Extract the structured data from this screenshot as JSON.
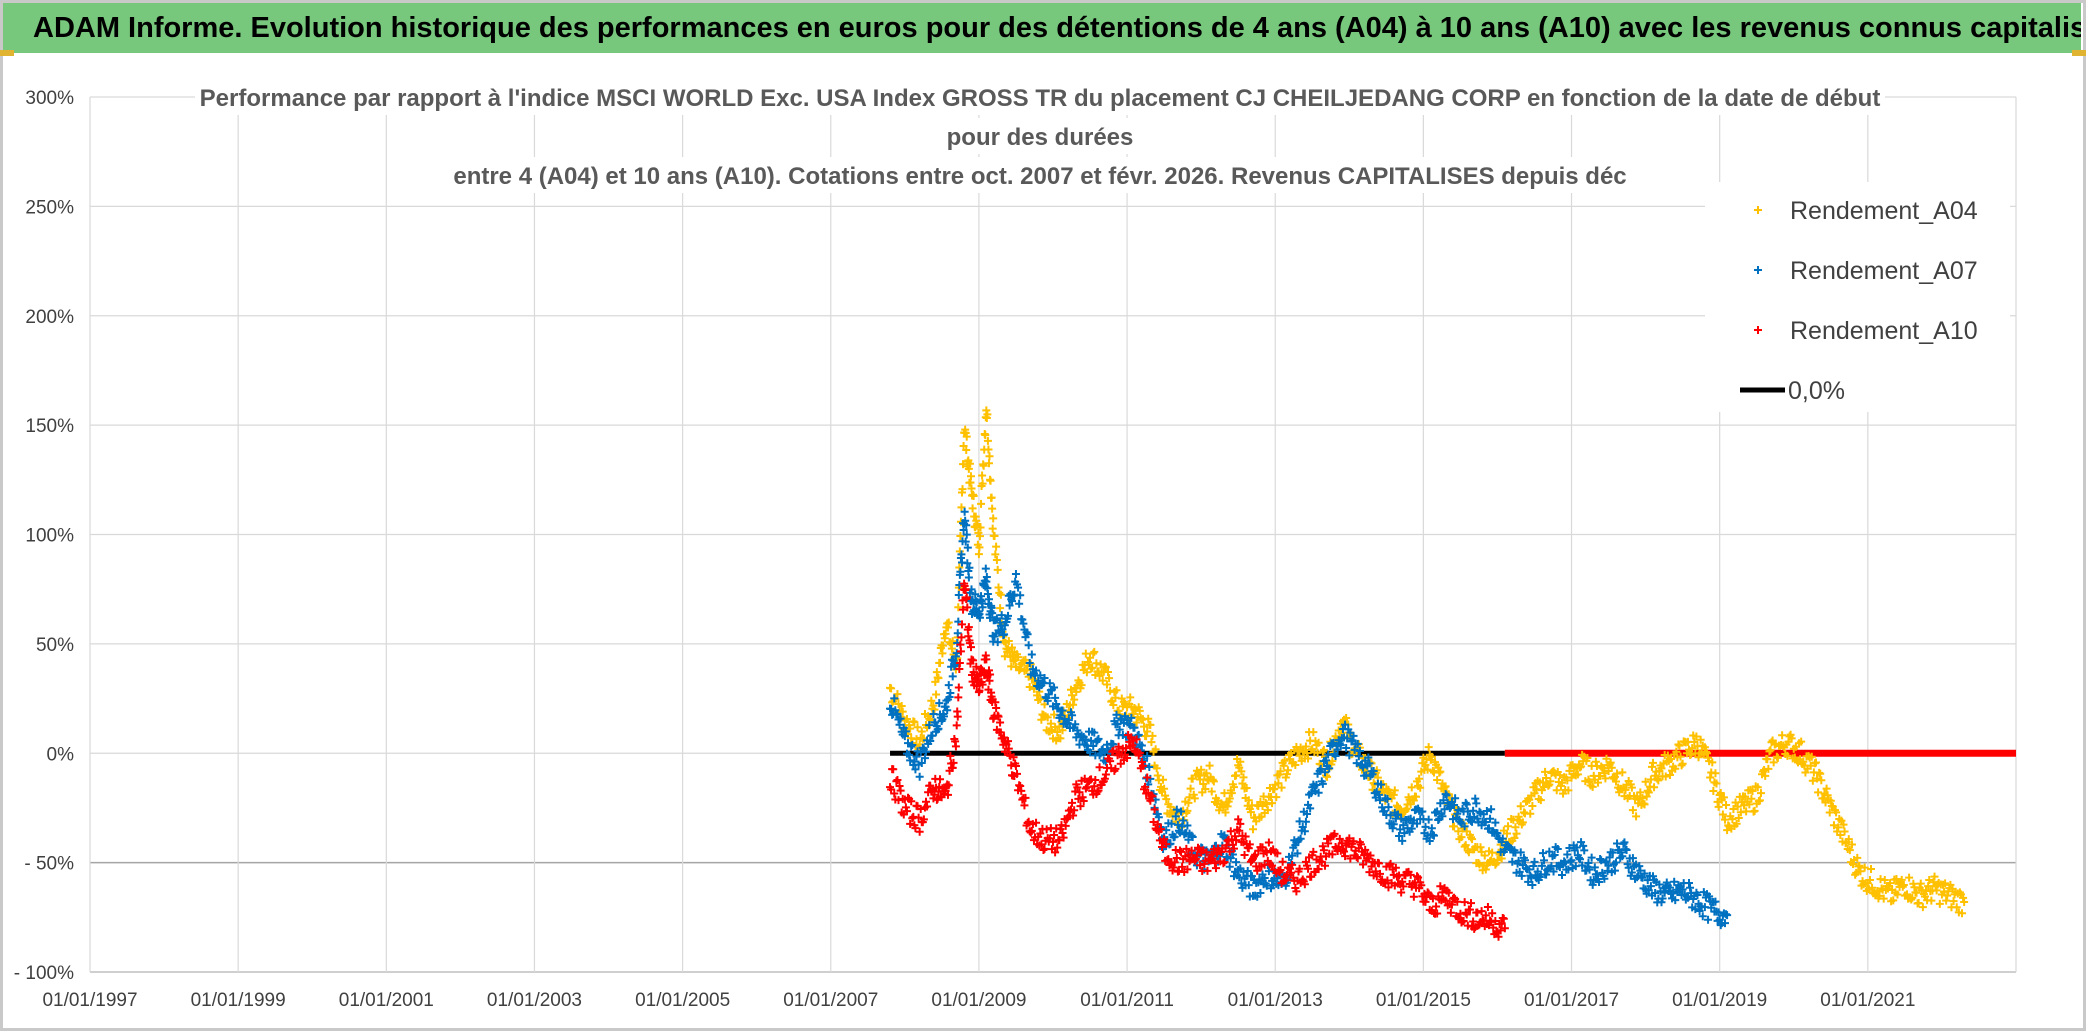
{
  "banner": {
    "text": "ADAM Informe. Evolution historique des performances en euros pour des détentions de 4 ans (A04) à 10 ans (A10) avec les revenus connus capitalisés"
  },
  "chart_data": {
    "type": "scatter",
    "title": [
      "Performance par rapport à l'indice MSCI WORLD Exc. USA Index GROSS TR  du placement CJ CHEILJEDANG CORP en fonction de la date de début",
      "pour des durées",
      "entre 4 (A04) et 10 ans (A10). Cotations entre oct. 2007 et févr. 2026. Revenus CAPITALISES depuis déc"
    ],
    "xlabel": "",
    "ylabel": "",
    "x_tick_labels": [
      "01/01/1997",
      "01/01/1999",
      "01/01/2001",
      "01/01/2003",
      "01/01/2005",
      "01/01/2007",
      "01/01/2009",
      "01/01/2011",
      "01/01/2013",
      "01/01/2015",
      "01/01/2017",
      "01/01/2019",
      "01/01/2021"
    ],
    "xlim": [
      1997.0,
      2023.0
    ],
    "y_tick_labels": [
      "300%",
      "250%",
      "200%",
      "150%",
      "100%",
      "50%",
      "0%",
      "- 50%",
      "- 100%"
    ],
    "ylim": [
      -100,
      300
    ],
    "grid": true,
    "legend_position": "top-right",
    "colors": {
      "A04": "#ffc000",
      "A07": "#0070c0",
      "A10": "#ff0000",
      "zero": "#000000"
    },
    "series": [
      {
        "name": "Rendement_A04",
        "marker": "+",
        "x": [
          2007.8,
          2008.0,
          2008.2,
          2008.4,
          2008.55,
          2008.7,
          2008.8,
          2008.9,
          2009.0,
          2009.1,
          2009.2,
          2009.35,
          2009.5,
          2009.7,
          2009.9,
          2010.1,
          2010.3,
          2010.5,
          2010.7,
          2010.9,
          2011.1,
          2011.3,
          2011.5,
          2011.7,
          2011.9,
          2012.1,
          2012.3,
          2012.5,
          2012.7,
          2012.9,
          2013.1,
          2013.3,
          2013.5,
          2013.7,
          2013.9,
          2014.1,
          2014.3,
          2014.5,
          2014.7,
          2014.9,
          2015.1,
          2015.3,
          2015.5,
          2015.7,
          2015.9,
          2016.1,
          2016.3,
          2016.5,
          2016.7,
          2016.9,
          2017.1,
          2017.3,
          2017.5,
          2017.7,
          2017.9,
          2018.1,
          2018.3,
          2018.5,
          2018.7,
          2018.9,
          2019.1,
          2019.3,
          2019.5,
          2019.7,
          2019.9,
          2020.1,
          2020.3,
          2020.5,
          2020.7,
          2020.9,
          2021.1,
          2021.3,
          2021.5,
          2021.7,
          2021.9,
          2022.1,
          2022.3
        ],
        "y": [
          30,
          15,
          5,
          25,
          60,
          40,
          150,
          120,
          95,
          160,
          100,
          50,
          40,
          35,
          15,
          10,
          30,
          45,
          35,
          20,
          20,
          10,
          -20,
          -30,
          -15,
          -10,
          -25,
          -5,
          -30,
          -20,
          -10,
          0,
          5,
          -5,
          15,
          0,
          -10,
          -20,
          -25,
          -15,
          0,
          -20,
          -35,
          -45,
          -50,
          -40,
          -30,
          -20,
          -10,
          -15,
          -5,
          -10,
          -5,
          -15,
          -25,
          -10,
          -5,
          0,
          5,
          -10,
          -30,
          -25,
          -20,
          0,
          5,
          0,
          -10,
          -25,
          -40,
          -55,
          -60,
          -65,
          -60,
          -65,
          -62,
          -65,
          -68
        ]
      },
      {
        "name": "Rendement_A07",
        "marker": "+",
        "x": [
          2007.8,
          2008.0,
          2008.2,
          2008.4,
          2008.55,
          2008.7,
          2008.8,
          2008.9,
          2009.0,
          2009.1,
          2009.2,
          2009.35,
          2009.5,
          2009.7,
          2009.9,
          2010.1,
          2010.3,
          2010.5,
          2010.7,
          2010.9,
          2011.1,
          2011.3,
          2011.5,
          2011.7,
          2011.9,
          2012.1,
          2012.3,
          2012.5,
          2012.7,
          2012.9,
          2013.1,
          2013.3,
          2013.5,
          2013.7,
          2013.9,
          2014.1,
          2014.3,
          2014.5,
          2014.7,
          2014.9,
          2015.1,
          2015.3,
          2015.5,
          2015.7,
          2015.9,
          2016.1,
          2016.3,
          2016.5,
          2016.7,
          2016.9,
          2017.1,
          2017.3,
          2017.5,
          2017.7,
          2017.9,
          2018.1,
          2018.3,
          2018.5,
          2018.7,
          2018.9,
          2019.1
        ],
        "y": [
          25,
          5,
          -5,
          15,
          20,
          50,
          110,
          70,
          65,
          80,
          55,
          60,
          80,
          40,
          30,
          20,
          10,
          5,
          0,
          15,
          10,
          -10,
          -40,
          -30,
          -45,
          -50,
          -40,
          -55,
          -62,
          -55,
          -60,
          -40,
          -20,
          -5,
          10,
          0,
          -10,
          -25,
          -35,
          -30,
          -35,
          -20,
          -30,
          -25,
          -30,
          -45,
          -50,
          -55,
          -48,
          -50,
          -45,
          -55,
          -50,
          -45,
          -55,
          -62,
          -65,
          -63,
          -67,
          -72,
          -74
        ]
      },
      {
        "name": "Rendement_A10",
        "marker": "+",
        "x": [
          2007.8,
          2008.0,
          2008.2,
          2008.4,
          2008.55,
          2008.7,
          2008.8,
          2008.9,
          2009.0,
          2009.1,
          2009.2,
          2009.35,
          2009.5,
          2009.7,
          2009.9,
          2010.1,
          2010.3,
          2010.5,
          2010.7,
          2010.9,
          2011.1,
          2011.3,
          2011.5,
          2011.7,
          2011.9,
          2012.1,
          2012.3,
          2012.5,
          2012.7,
          2012.9,
          2013.1,
          2013.3,
          2013.5,
          2013.7,
          2013.9,
          2014.1,
          2014.3,
          2014.5,
          2014.7,
          2014.9,
          2015.1,
          2015.3,
          2015.5,
          2015.7,
          2015.9,
          2016.1
        ],
        "y": [
          -10,
          -25,
          -30,
          -15,
          -20,
          10,
          80,
          40,
          30,
          40,
          20,
          5,
          -10,
          -35,
          -40,
          -40,
          -20,
          -15,
          -10,
          0,
          5,
          -20,
          -45,
          -50,
          -48,
          -50,
          -45,
          -35,
          -50,
          -45,
          -55,
          -58,
          -50,
          -45,
          -40,
          -45,
          -50,
          -55,
          -58,
          -60,
          -70,
          -65,
          -72,
          -75,
          -76,
          -80
        ]
      },
      {
        "name": "0,0%",
        "marker": "line",
        "x": [
          2007.8,
          2022.0
        ],
        "y": [
          0,
          0
        ]
      }
    ]
  }
}
